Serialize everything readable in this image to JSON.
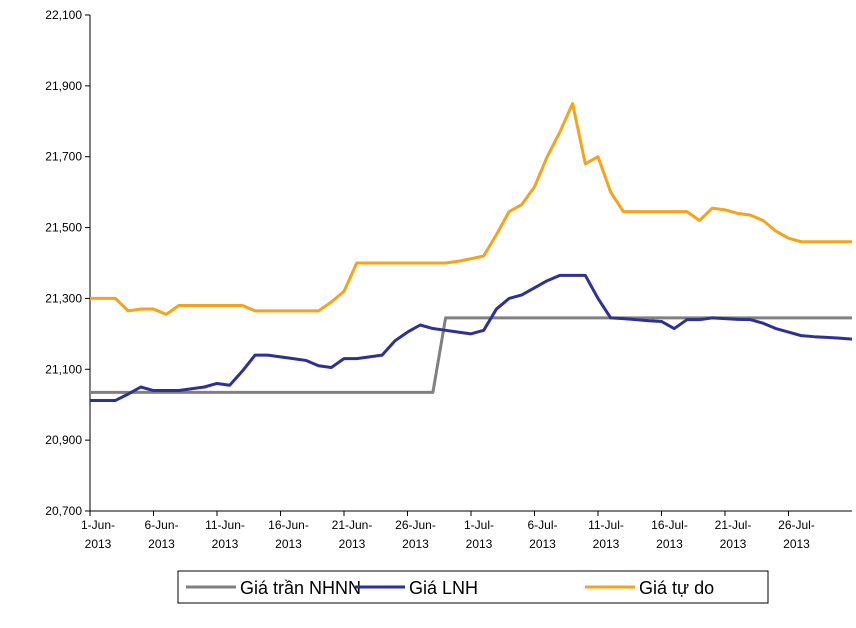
{
  "chart_data": {
    "type": "line",
    "categories": [
      "1-Jun-2013",
      null,
      null,
      null,
      null,
      "6-Jun-2013",
      null,
      null,
      null,
      null,
      "11-Jun-2013",
      null,
      null,
      null,
      null,
      "16-Jun-2013",
      null,
      null,
      null,
      null,
      "21-Jun-2013",
      null,
      null,
      null,
      null,
      "26-Jun-2013",
      null,
      null,
      null,
      null,
      "1-Jul-2013",
      null,
      null,
      null,
      null,
      "6-Jul-2013",
      null,
      null,
      null,
      null,
      "11-Jul-2013",
      null,
      null,
      null,
      null,
      "16-Jul-2013",
      null,
      null,
      null,
      null,
      "21-Jul-2013",
      null,
      null,
      null,
      null,
      "26-Jul-2013",
      null,
      null,
      null,
      null,
      null
    ],
    "series": [
      {
        "name": "Giá trần NHNN",
        "color": "#808080",
        "values": [
          21035,
          21035,
          21035,
          21035,
          21035,
          21035,
          21035,
          21035,
          21035,
          21035,
          21035,
          21035,
          21035,
          21035,
          21035,
          21035,
          21035,
          21035,
          21035,
          21035,
          21035,
          21035,
          21035,
          21035,
          21035,
          21035,
          21035,
          21035,
          21245,
          21245,
          21245,
          21245,
          21245,
          21245,
          21245,
          21245,
          21245,
          21245,
          21245,
          21245,
          21245,
          21245,
          21245,
          21245,
          21245,
          21245,
          21245,
          21245,
          21245,
          21245,
          21245,
          21245,
          21245,
          21245,
          21245,
          21245,
          21245,
          21245,
          21245,
          21245,
          21245
        ]
      },
      {
        "name": "Giá LNH",
        "color": "#2e3192",
        "values": [
          21012,
          21012,
          21012,
          21030,
          21050,
          21040,
          21040,
          21040,
          21045,
          21050,
          21060,
          21055,
          21095,
          21140,
          21140,
          21135,
          21130,
          21125,
          21110,
          21105,
          21130,
          21130,
          21135,
          21140,
          21180,
          21205,
          21225,
          21215,
          21210,
          21205,
          21200,
          21210,
          21270,
          21300,
          21310,
          21330,
          21350,
          21365,
          21365,
          21365,
          21300,
          21245,
          21243,
          21240,
          21237,
          21235,
          21215,
          21240,
          21240,
          21245,
          21243,
          21241,
          21240,
          21230,
          21215,
          21205,
          21195,
          21192,
          21190,
          21188,
          21185
        ]
      },
      {
        "name": "Giá tự do",
        "color": "#f7a21b",
        "values": [
          21300,
          21300,
          21300,
          21265,
          21270,
          21270,
          21255,
          21280,
          21280,
          21280,
          21280,
          21280,
          21280,
          21265,
          21265,
          21265,
          21265,
          21265,
          21265,
          21290,
          21320,
          21400,
          21400,
          21400,
          21400,
          21400,
          21400,
          21400,
          21400,
          21405,
          21412,
          21420,
          21480,
          21545,
          21565,
          21615,
          21700,
          21770,
          21850,
          21680,
          21700,
          21600,
          21545,
          21545,
          21545,
          21545,
          21545,
          21545,
          21520,
          21555,
          21550,
          21540,
          21535,
          21520,
          21490,
          21470,
          21460,
          21460,
          21460,
          21460,
          21460
        ]
      }
    ],
    "ylim": [
      20700,
      22100
    ],
    "yticks": [
      {
        "value": 20700,
        "label": "20,700"
      },
      {
        "value": 20900,
        "label": "20,900"
      },
      {
        "value": 21100,
        "label": "21,100"
      },
      {
        "value": 21300,
        "label": "21,300"
      },
      {
        "value": 21500,
        "label": "21,500"
      },
      {
        "value": 21700,
        "label": "21,700"
      },
      {
        "value": 21900,
        "label": "21,900"
      },
      {
        "value": 22100,
        "label": "22,100"
      }
    ],
    "legend": "bottom"
  }
}
